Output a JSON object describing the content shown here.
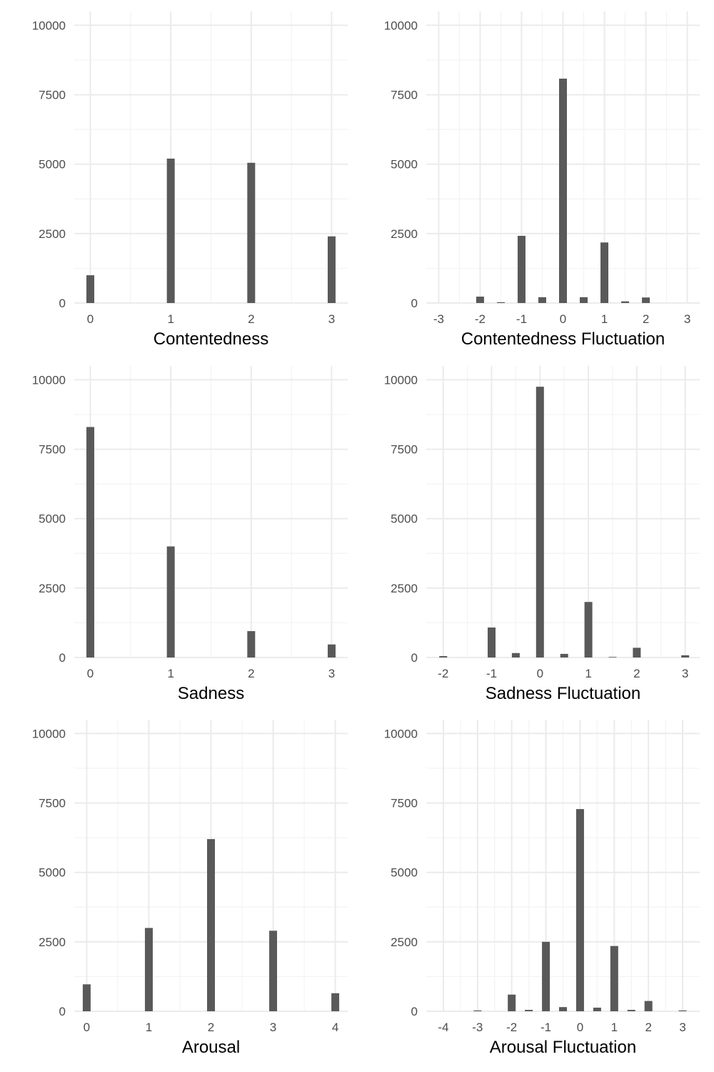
{
  "chart_data": [
    {
      "type": "bar",
      "xlabel": "Contentedness",
      "xlim": [
        -0.2,
        3.2
      ],
      "xticks": [
        0,
        1,
        2,
        3
      ],
      "ylim": [
        0,
        10500
      ],
      "yticks": [
        0,
        2500,
        5000,
        7500,
        10000
      ],
      "grid": true,
      "bar_color": "#595959",
      "x": [
        0,
        1,
        2,
        3
      ],
      "values": [
        1000,
        5200,
        5050,
        2400
      ]
    },
    {
      "type": "bar",
      "xlabel": "Contentedness Fluctuation",
      "xlim": [
        -3.3,
        3.3
      ],
      "xticks": [
        -3,
        -2,
        -1,
        0,
        1,
        2,
        3
      ],
      "ylim": [
        0,
        10500
      ],
      "yticks": [
        0,
        2500,
        5000,
        7500,
        10000
      ],
      "grid": true,
      "bar_color": "#595959",
      "x": [
        -2,
        -1.5,
        -1,
        -0.5,
        0,
        0.5,
        1,
        1.5,
        2
      ],
      "values": [
        230,
        30,
        2420,
        210,
        8080,
        210,
        2180,
        60,
        200
      ]
    },
    {
      "type": "bar",
      "xlabel": "Sadness",
      "xlim": [
        -0.2,
        3.2
      ],
      "xticks": [
        0,
        1,
        2,
        3
      ],
      "ylim": [
        0,
        10500
      ],
      "yticks": [
        0,
        2500,
        5000,
        7500,
        10000
      ],
      "grid": true,
      "bar_color": "#595959",
      "x": [
        0,
        1,
        2,
        3
      ],
      "values": [
        8300,
        4000,
        950,
        470
      ]
    },
    {
      "type": "bar",
      "xlabel": "Sadness Fluctuation",
      "xlim": [
        -2.35,
        3.3
      ],
      "xticks": [
        -2,
        -1,
        0,
        1,
        2,
        3
      ],
      "ylim": [
        0,
        10500
      ],
      "yticks": [
        0,
        2500,
        5000,
        7500,
        10000
      ],
      "grid": true,
      "bar_color": "#595959",
      "x": [
        -2,
        -1,
        -0.5,
        0,
        0.5,
        1,
        1.5,
        2,
        3
      ],
      "values": [
        50,
        1080,
        160,
        9750,
        130,
        2000,
        20,
        350,
        80
      ]
    },
    {
      "type": "bar",
      "xlabel": "Arousal",
      "xlim": [
        -0.2,
        4.2
      ],
      "xticks": [
        0,
        1,
        2,
        3,
        4
      ],
      "ylim": [
        0,
        10500
      ],
      "yticks": [
        0,
        2500,
        5000,
        7500,
        10000
      ],
      "grid": true,
      "bar_color": "#595959",
      "x": [
        0,
        1,
        2,
        3,
        4
      ],
      "values": [
        970,
        3000,
        6200,
        2900,
        650
      ]
    },
    {
      "type": "bar",
      "xlabel": "Arousal Fluctuation",
      "xlim": [
        -4.5,
        3.5
      ],
      "xticks": [
        -4,
        -3,
        -2,
        -1,
        0,
        1,
        2,
        3
      ],
      "ylim": [
        0,
        10500
      ],
      "yticks": [
        0,
        2500,
        5000,
        7500,
        10000
      ],
      "grid": true,
      "bar_color": "#595959",
      "x": [
        -3,
        -2,
        -1.5,
        -1,
        -0.5,
        0,
        0.5,
        1,
        1.5,
        2,
        3
      ],
      "values": [
        30,
        600,
        50,
        2500,
        150,
        7280,
        130,
        2350,
        50,
        370,
        30
      ]
    }
  ]
}
